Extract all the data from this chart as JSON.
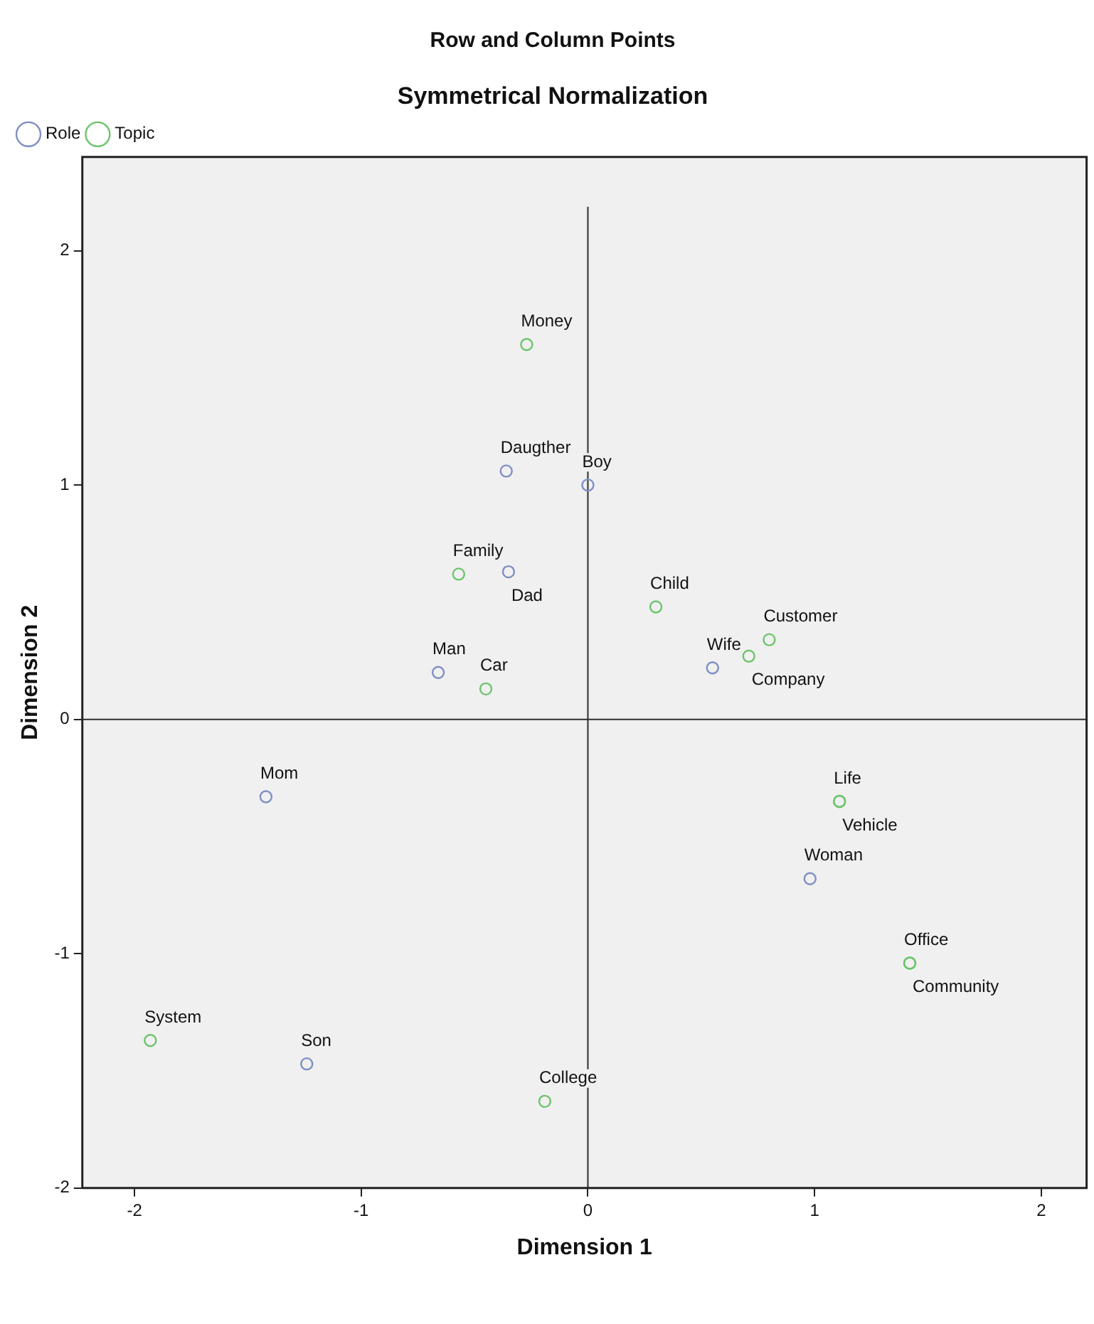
{
  "chart_data": {
    "type": "scatter",
    "title": "Row and Column Points",
    "subtitle": "Symmetrical Normalization",
    "xlabel": "Dimension 1",
    "ylabel": "Dimension 2",
    "xlim": [
      -2.23,
      2.2
    ],
    "ylim": [
      -2,
      2.4
    ],
    "xticks": [
      -2,
      -1,
      0,
      1,
      2
    ],
    "yticks": [
      -2,
      -1,
      0,
      1,
      2
    ],
    "grid": false,
    "legend": "top left",
    "marker": "circle",
    "series": [
      {
        "name": "Role",
        "color": "#7f8fc4",
        "x": [
          -0.36,
          0.0,
          -0.35,
          -0.66,
          0.55,
          -1.42,
          0.98,
          -1.24
        ],
        "values": [
          1.06,
          1.0,
          0.63,
          0.2,
          0.22,
          -0.33,
          -0.68,
          -1.47
        ]
      },
      {
        "name": "Topic",
        "color": "#6cc46c",
        "x": [
          -0.27,
          -0.57,
          0.3,
          0.71,
          0.8,
          -0.45,
          1.11,
          1.11,
          1.42,
          1.42,
          -1.93,
          -0.19
        ],
        "values": [
          1.6,
          0.62,
          0.48,
          0.27,
          0.34,
          0.13,
          -0.35,
          -0.35,
          -1.04,
          -1.04,
          -1.37,
          -1.63
        ]
      }
    ],
    "ref_lines": [
      {
        "axis": "x",
        "value": 0
      },
      {
        "axis": "y",
        "value": 0
      }
    ],
    "annotations": [
      {
        "text": "Money",
        "x": -0.27,
        "y": 1.6
      },
      {
        "text": "Daugther",
        "x": -0.36,
        "y": 1.06
      },
      {
        "text": "Boy",
        "x": 0.0,
        "y": 1.0
      },
      {
        "text": "Family",
        "x": -0.57,
        "y": 0.62
      },
      {
        "text": "Dad",
        "x": -0.35,
        "y": 0.63
      },
      {
        "text": "Child",
        "x": 0.3,
        "y": 0.48
      },
      {
        "text": "Customer",
        "x": 0.8,
        "y": 0.34
      },
      {
        "text": "Company",
        "x": 0.71,
        "y": 0.27
      },
      {
        "text": "Wife",
        "x": 0.55,
        "y": 0.22
      },
      {
        "text": "Man",
        "x": -0.66,
        "y": 0.2
      },
      {
        "text": "Car",
        "x": -0.45,
        "y": 0.13
      },
      {
        "text": "Mom",
        "x": -1.42,
        "y": -0.33
      },
      {
        "text": "Life",
        "x": 1.11,
        "y": -0.35
      },
      {
        "text": "Vehicle",
        "x": 1.11,
        "y": -0.35
      },
      {
        "text": "Woman",
        "x": 0.98,
        "y": -0.68
      },
      {
        "text": "Office",
        "x": 1.42,
        "y": -1.04
      },
      {
        "text": "Community",
        "x": 1.42,
        "y": -1.04
      },
      {
        "text": "System",
        "x": -1.93,
        "y": -1.37
      },
      {
        "text": "Son",
        "x": -1.24,
        "y": -1.47
      },
      {
        "text": "College",
        "x": -0.19,
        "y": -1.63
      }
    ]
  }
}
